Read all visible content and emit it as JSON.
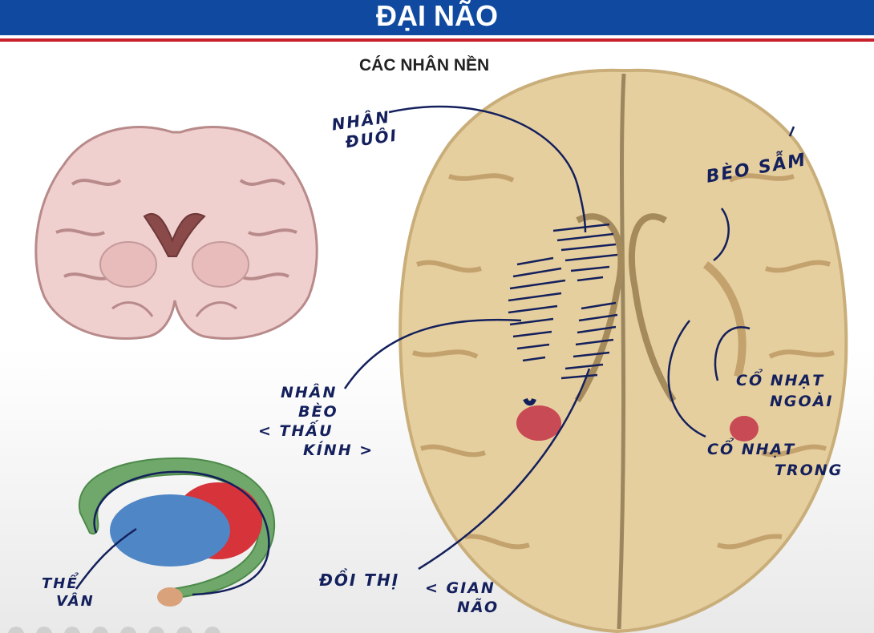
{
  "slide": {
    "title": "ĐẠI NÃO",
    "subtitle": "CÁC NHÂN NỀN"
  },
  "annotations": {
    "caudate_line1": "NHÂN",
    "caudate_line2": "ĐUÔI",
    "putamen_pallidus": "BÈO SẪM",
    "lentiform_line1": "NHÂN",
    "lentiform_line2": "BÈO",
    "lentiform_line3": "< THẤU",
    "lentiform_line4": "KÍNH >",
    "thalamus": "ĐỒI THỊ",
    "diencephalon_line1": "< GIAN",
    "diencephalon_line2": "NÃO",
    "external_capsule_line1": "CỔ NHẠT",
    "external_capsule_line2": "NGOÀI",
    "internal_capsule_line1": "CỔ NHẠT",
    "internal_capsule_line2": "TRONG",
    "striatum_line1": "THỂ",
    "striatum_line2": "VÂN"
  },
  "colors": {
    "header_blue": "#0f4aa0",
    "header_red": "#c8202a",
    "ink": "#14205c",
    "brain_tan": "#e6cf9f",
    "coronal_pink": "#f0cfcf"
  }
}
